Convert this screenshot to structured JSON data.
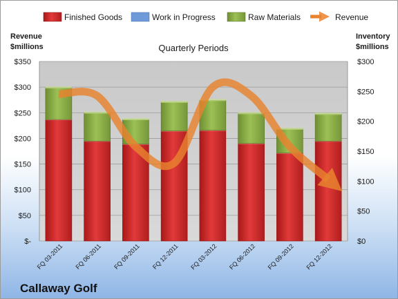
{
  "chart_data": {
    "type": "bar",
    "title": "Quarterly Periods",
    "company": "Callaway Golf",
    "left_axis": {
      "title_line1": "Revenue",
      "title_line2": "$millions",
      "ylim": [
        0,
        350
      ],
      "ticks": [
        "$-",
        "$50",
        "$100",
        "$150",
        "$200",
        "$250",
        "$300",
        "$350"
      ]
    },
    "right_axis": {
      "title_line1": "Inventory",
      "title_line2": "$millions",
      "ylim": [
        0,
        300
      ],
      "ticks": [
        "$0",
        "$50",
        "$100",
        "$150",
        "$200",
        "$250",
        "$300"
      ]
    },
    "categories": [
      "FQ 03-2011",
      "FQ 06-2011",
      "FQ 09-2011",
      "FQ 12-2011",
      "FQ 03-2012",
      "FQ 06-2012",
      "FQ 09-2012",
      "FQ 12-2012"
    ],
    "series": [
      {
        "name": "Finished Goods",
        "axis": "right",
        "stacked": true,
        "color": "#d42a2a",
        "values": [
          203,
          167,
          162,
          184,
          185,
          163,
          147,
          167
        ]
      },
      {
        "name": "Work in Progress",
        "axis": "right",
        "stacked": true,
        "color": "#6f9ad9",
        "values": [
          0,
          0,
          0,
          0,
          0,
          0,
          0,
          0
        ]
      },
      {
        "name": "Raw Materials",
        "axis": "right",
        "stacked": true,
        "color": "#8db04a",
        "values": [
          53,
          47,
          41,
          48,
          50,
          50,
          40,
          45
        ]
      },
      {
        "name": "Revenue",
        "axis": "left",
        "type": "line",
        "color": "#e8822e",
        "values": [
          286,
          283,
          184,
          152,
          300,
          283,
          184,
          120
        ]
      }
    ],
    "grid": true,
    "legend_position": "top"
  }
}
